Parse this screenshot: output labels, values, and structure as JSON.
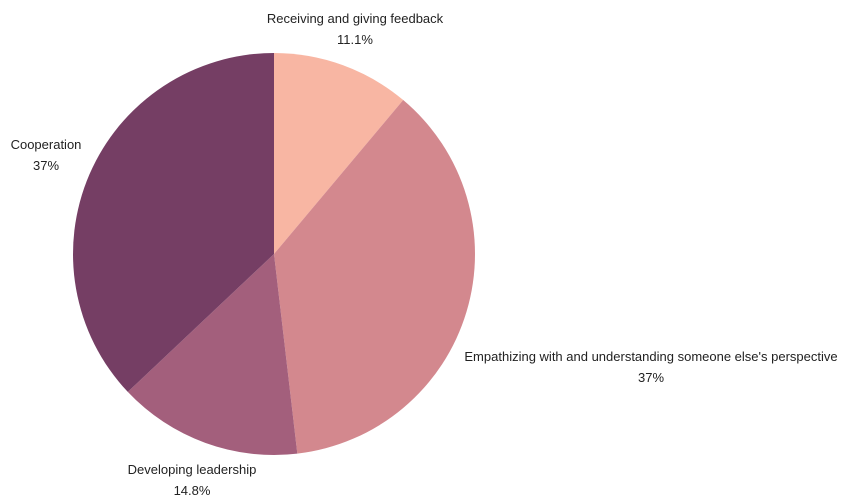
{
  "chart_data": {
    "type": "pie",
    "title": "",
    "slices": [
      {
        "label": "Receiving and giving feedback",
        "value": 11.1,
        "value_label": "11.1%",
        "color": "#f8b6a3"
      },
      {
        "label": "Empathizing with and understanding someone else's perspective",
        "value": 37,
        "value_label": "37%",
        "color": "#d3888e"
      },
      {
        "label": "Developing leadership",
        "value": 14.8,
        "value_label": "14.8%",
        "color": "#a35f7c"
      },
      {
        "label": "Cooperation",
        "value": 37,
        "value_label": "37%",
        "color": "#753e64"
      }
    ],
    "start_angle_deg": 0,
    "direction": "clockwise",
    "legend": "none",
    "labels": "outside"
  }
}
